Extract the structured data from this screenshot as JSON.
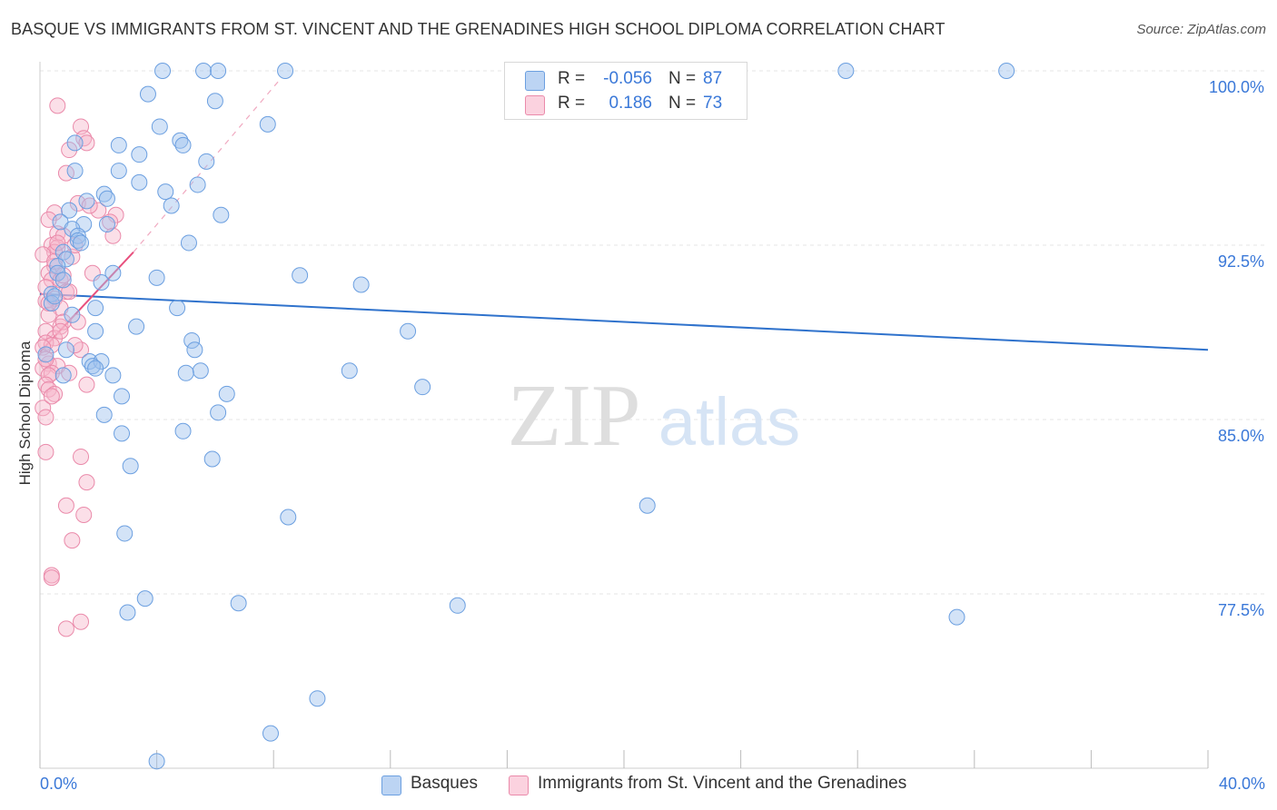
{
  "chart_data": {
    "type": "scatter",
    "title": "BASQUE VS IMMIGRANTS FROM ST. VINCENT AND THE GRENADINES HIGH SCHOOL DIPLOMA CORRELATION CHART",
    "source": "Source: ZipAtlas.com",
    "ylabel": "High School Diploma",
    "xlim": [
      0,
      40
    ],
    "ylim": [
      70,
      100
    ],
    "x_tick_labels": [
      "0.0%",
      "40.0%"
    ],
    "y_ticks": [
      77.5,
      85.0,
      92.5,
      100.0
    ],
    "y_tick_labels": [
      "77.5%",
      "85.0%",
      "92.5%",
      "100.0%"
    ],
    "watermark": "ZIPatlas",
    "legend": {
      "rows": [
        {
          "r_label": "R =",
          "r_value": "-0.056",
          "n_label": "N =",
          "n_value": "87"
        },
        {
          "r_label": "R =",
          "r_value": "0.186",
          "n_label": "N =",
          "n_value": "73"
        }
      ]
    },
    "series": [
      {
        "name": "Basques",
        "color": "#9ec2ee",
        "stroke": "#6b9fe0",
        "trend": {
          "x0": 0.0,
          "y0": 90.4,
          "x1": 40.0,
          "y1": 88.0,
          "color": "#2f72cc"
        },
        "points": [
          [
            4.2,
            100
          ],
          [
            5.6,
            100
          ],
          [
            6.1,
            100
          ],
          [
            8.4,
            100
          ],
          [
            27.6,
            100
          ],
          [
            33.1,
            100
          ],
          [
            3.7,
            99.0
          ],
          [
            6.0,
            98.7
          ],
          [
            4.1,
            97.6
          ],
          [
            7.8,
            97.7
          ],
          [
            4.8,
            97.0
          ],
          [
            2.7,
            96.8
          ],
          [
            1.2,
            96.9
          ],
          [
            4.9,
            96.8
          ],
          [
            3.4,
            96.4
          ],
          [
            5.7,
            96.1
          ],
          [
            1.2,
            95.7
          ],
          [
            2.7,
            95.7
          ],
          [
            3.4,
            95.2
          ],
          [
            5.4,
            95.1
          ],
          [
            4.3,
            94.8
          ],
          [
            2.2,
            94.7
          ],
          [
            2.3,
            94.5
          ],
          [
            1.6,
            94.4
          ],
          [
            4.5,
            94.2
          ],
          [
            1.0,
            94.0
          ],
          [
            6.2,
            93.8
          ],
          [
            0.7,
            93.5
          ],
          [
            1.5,
            93.4
          ],
          [
            2.3,
            93.4
          ],
          [
            1.1,
            93.2
          ],
          [
            1.3,
            92.9
          ],
          [
            1.3,
            92.7
          ],
          [
            5.1,
            92.6
          ],
          [
            0.8,
            92.2
          ],
          [
            0.9,
            91.9
          ],
          [
            0.6,
            91.6
          ],
          [
            0.6,
            91.3
          ],
          [
            2.5,
            91.3
          ],
          [
            8.9,
            91.2
          ],
          [
            4.0,
            91.1
          ],
          [
            0.8,
            91.0
          ],
          [
            2.1,
            90.9
          ],
          [
            11.0,
            90.8
          ],
          [
            0.4,
            90.4
          ],
          [
            0.4,
            90.0
          ],
          [
            4.7,
            89.8
          ],
          [
            1.9,
            89.8
          ],
          [
            3.3,
            89.0
          ],
          [
            1.9,
            88.8
          ],
          [
            12.6,
            88.8
          ],
          [
            5.2,
            88.4
          ],
          [
            5.3,
            88.0
          ],
          [
            0.2,
            87.8
          ],
          [
            1.7,
            87.5
          ],
          [
            2.1,
            87.5
          ],
          [
            1.8,
            87.3
          ],
          [
            1.9,
            87.2
          ],
          [
            10.6,
            87.1
          ],
          [
            5.5,
            87.1
          ],
          [
            5.0,
            87.0
          ],
          [
            2.5,
            86.9
          ],
          [
            0.8,
            86.9
          ],
          [
            13.1,
            86.4
          ],
          [
            6.4,
            86.1
          ],
          [
            2.2,
            85.2
          ],
          [
            6.1,
            85.3
          ],
          [
            4.9,
            84.5
          ],
          [
            2.8,
            84.4
          ],
          [
            5.9,
            83.3
          ],
          [
            3.1,
            83.0
          ],
          [
            20.8,
            81.3
          ],
          [
            8.5,
            80.8
          ],
          [
            2.9,
            80.1
          ],
          [
            3.6,
            77.3
          ],
          [
            6.8,
            77.1
          ],
          [
            14.3,
            77.0
          ],
          [
            3.0,
            76.7
          ],
          [
            31.4,
            76.5
          ],
          [
            9.5,
            73.0
          ],
          [
            7.9,
            71.5
          ],
          [
            4.0,
            70.3
          ],
          [
            0.5,
            90.3
          ],
          [
            1.4,
            92.6
          ],
          [
            0.9,
            88.0
          ],
          [
            1.1,
            89.5
          ],
          [
            2.8,
            86.0
          ]
        ]
      },
      {
        "name": "Immigrants from St. Vincent and the Grenadines",
        "color": "#f6b8cc",
        "stroke": "#ea8aaa",
        "trend": {
          "x0": 0.0,
          "y0": 87.9,
          "x1": 3.2,
          "y1": 92.2,
          "color": "#e8507e"
        },
        "trend_dashed": {
          "x0": 3.2,
          "y0": 92.2,
          "x1": 8.2,
          "y1": 99.6
        },
        "points": [
          [
            0.6,
            98.5
          ],
          [
            1.4,
            97.6
          ],
          [
            1.5,
            97.1
          ],
          [
            1.6,
            96.9
          ],
          [
            1.0,
            96.6
          ],
          [
            0.9,
            95.6
          ],
          [
            1.3,
            94.3
          ],
          [
            0.5,
            93.9
          ],
          [
            2.6,
            93.8
          ],
          [
            0.3,
            93.6
          ],
          [
            2.4,
            93.5
          ],
          [
            0.6,
            93.0
          ],
          [
            0.8,
            92.9
          ],
          [
            2.5,
            92.9
          ],
          [
            0.4,
            92.5
          ],
          [
            0.6,
            92.4
          ],
          [
            0.5,
            92.2
          ],
          [
            0.1,
            92.1
          ],
          [
            1.1,
            92.0
          ],
          [
            0.5,
            91.6
          ],
          [
            0.3,
            91.3
          ],
          [
            1.8,
            91.3
          ],
          [
            0.4,
            91.0
          ],
          [
            0.7,
            91.0
          ],
          [
            0.2,
            90.7
          ],
          [
            0.9,
            90.5
          ],
          [
            0.5,
            90.2
          ],
          [
            0.2,
            90.1
          ],
          [
            0.7,
            89.8
          ],
          [
            1.3,
            89.2
          ],
          [
            0.7,
            89.0
          ],
          [
            0.2,
            88.8
          ],
          [
            0.5,
            88.5
          ],
          [
            0.2,
            88.3
          ],
          [
            0.4,
            88.2
          ],
          [
            0.1,
            88.1
          ],
          [
            1.4,
            88.0
          ],
          [
            0.3,
            87.4
          ],
          [
            0.6,
            87.3
          ],
          [
            0.1,
            87.2
          ],
          [
            0.4,
            87.0
          ],
          [
            1.0,
            87.0
          ],
          [
            0.3,
            86.9
          ],
          [
            0.2,
            86.5
          ],
          [
            1.6,
            86.5
          ],
          [
            0.3,
            86.3
          ],
          [
            0.5,
            86.1
          ],
          [
            0.1,
            85.5
          ],
          [
            0.2,
            85.1
          ],
          [
            0.2,
            83.6
          ],
          [
            1.4,
            83.4
          ],
          [
            1.6,
            82.3
          ],
          [
            0.9,
            81.3
          ],
          [
            1.5,
            80.9
          ],
          [
            1.1,
            79.8
          ],
          [
            0.4,
            78.3
          ],
          [
            0.4,
            78.2
          ],
          [
            1.4,
            76.3
          ],
          [
            0.9,
            76.0
          ],
          [
            1.2,
            92.5
          ],
          [
            0.3,
            89.5
          ],
          [
            0.8,
            89.2
          ],
          [
            1.0,
            90.5
          ],
          [
            0.5,
            91.8
          ],
          [
            0.2,
            87.6
          ],
          [
            0.7,
            88.8
          ],
          [
            2.0,
            94.0
          ],
          [
            0.6,
            92.6
          ],
          [
            1.2,
            88.2
          ],
          [
            0.4,
            86.0
          ],
          [
            1.7,
            94.2
          ],
          [
            0.8,
            91.2
          ],
          [
            0.3,
            90.0
          ]
        ]
      }
    ]
  }
}
